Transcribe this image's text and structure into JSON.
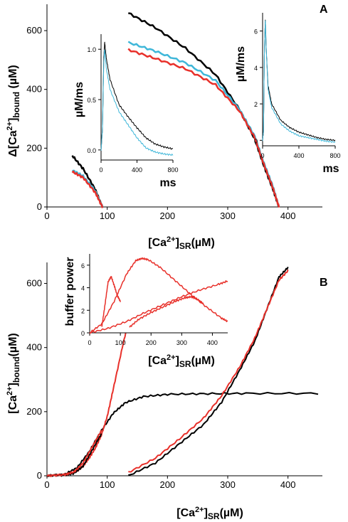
{
  "chart_data": [
    {
      "panel": "A",
      "type": "scatter",
      "xlabel": "[Ca2+]SR(µM)",
      "ylabel": "Δ[Ca2+]bound (µM)",
      "xlim": [
        0,
        450
      ],
      "ylim": [
        0,
        680
      ],
      "xticks": [
        "0",
        "100",
        "200",
        "300",
        "400"
      ],
      "yticks": [
        "0",
        "200",
        "400",
        "600"
      ],
      "colors": {
        "black": "#000000",
        "cyan": "#3fb7d9",
        "red": "#e8302a"
      },
      "series": [
        {
          "color": "black",
          "x": [
            42,
            60,
            80,
            92
          ],
          "y": [
            175,
            130,
            60,
            0
          ]
        },
        {
          "color": "cyan",
          "x": [
            42,
            60,
            80,
            92
          ],
          "y": [
            125,
            105,
            55,
            0
          ]
        },
        {
          "color": "red",
          "x": [
            42,
            60,
            80,
            92
          ],
          "y": [
            120,
            100,
            50,
            0
          ]
        },
        {
          "color": "black",
          "x": [
            135,
            180,
            230,
            280,
            320,
            345,
            360,
            375,
            385
          ],
          "y": [
            660,
            610,
            540,
            450,
            330,
            230,
            140,
            60,
            0
          ]
        },
        {
          "color": "cyan",
          "x": [
            135,
            180,
            230,
            280,
            320,
            345,
            360,
            375,
            385
          ],
          "y": [
            560,
            530,
            490,
            430,
            330,
            240,
            150,
            70,
            0
          ]
        },
        {
          "color": "red",
          "x": [
            135,
            180,
            230,
            280,
            320,
            345,
            360,
            375,
            385
          ],
          "y": [
            535,
            505,
            470,
            415,
            325,
            235,
            145,
            65,
            0
          ]
        }
      ],
      "insets": [
        {
          "ylabel": "µM/ms",
          "xlabel": "ms",
          "xlim": [
            0,
            800
          ],
          "ylim": [
            -0.1,
            1.15
          ],
          "xticks": [
            "0",
            "400",
            "800"
          ],
          "yticks": [
            "0.0",
            "0.5",
            "1.0"
          ],
          "series": [
            {
              "color": "black",
              "x": [
                0,
                15,
                30,
                40,
                60,
                100,
                200,
                300,
                400,
                500,
                600,
                700,
                800
              ],
              "y": [
                0,
                0.2,
                0.9,
                1.07,
                0.9,
                0.7,
                0.45,
                0.33,
                0.22,
                0.12,
                0.06,
                0.03,
                0.01
              ]
            },
            {
              "color": "cyan",
              "x": [
                0,
                15,
                30,
                40,
                60,
                100,
                200,
                300,
                400,
                500,
                600,
                700,
                800
              ],
              "y": [
                0,
                0.2,
                0.85,
                1.0,
                0.8,
                0.6,
                0.38,
                0.25,
                0.12,
                0.02,
                -0.02,
                -0.04,
                -0.05
              ]
            }
          ]
        },
        {
          "ylabel": "µM/ms",
          "xlabel": "ms",
          "xlim": [
            0,
            800
          ],
          "ylim": [
            -0.3,
            7
          ],
          "xticks": [
            "0",
            "400",
            "800"
          ],
          "yticks": [
            "0",
            "2",
            "4",
            "6"
          ],
          "series": [
            {
              "color": "black",
              "x": [
                0,
                10,
                20,
                30,
                40,
                60,
                100,
                200,
                300,
                400,
                500,
                600,
                700,
                800
              ],
              "y": [
                0,
                0.5,
                5.0,
                6.6,
                5.0,
                3.0,
                2.0,
                1.1,
                0.7,
                0.45,
                0.3,
                0.15,
                0.05,
                0.0
              ]
            },
            {
              "color": "cyan",
              "x": [
                0,
                10,
                20,
                30,
                40,
                60,
                100,
                200,
                300,
                400,
                500,
                600,
                700,
                800
              ],
              "y": [
                0,
                0.5,
                5.0,
                6.6,
                5.0,
                2.8,
                1.8,
                0.9,
                0.5,
                0.25,
                0.15,
                0.05,
                -0.05,
                -0.1
              ]
            }
          ]
        }
      ]
    },
    {
      "panel": "B",
      "type": "line",
      "xlabel": "[Ca2+]SR(µM)",
      "ylabel": "[Ca2+]bound(µM)",
      "xlim": [
        0,
        450
      ],
      "ylim": [
        0,
        650
      ],
      "xticks": [
        "0",
        "100",
        "200",
        "300",
        "400"
      ],
      "yticks": [
        "0",
        "200",
        "400",
        "600"
      ],
      "series": [
        {
          "color": "black",
          "x": [
            0,
            30,
            50,
            70,
            90,
            110,
            130,
            160,
            200,
            260,
            330,
            450
          ],
          "y": [
            0,
            5,
            25,
            75,
            140,
            195,
            228,
            247,
            254,
            256,
            257,
            257
          ]
        },
        {
          "color": "red",
          "x": [
            0,
            30,
            50,
            60,
            70,
            80,
            90,
            100,
            110,
            125,
            140,
            155,
            165
          ],
          "y": [
            0,
            4,
            15,
            30,
            55,
            85,
            125,
            185,
            270,
            400,
            520,
            620,
            650
          ]
        },
        {
          "color": "black",
          "x": [
            0,
            30,
            45,
            60,
            75,
            90
          ],
          "y": [
            0,
            2,
            8,
            30,
            80,
            130
          ]
        },
        {
          "color": "red",
          "x": [
            0,
            30,
            45,
            60,
            75,
            90
          ],
          "y": [
            0,
            3,
            12,
            40,
            90,
            140
          ]
        },
        {
          "color": "black",
          "x": [
            135,
            180,
            220,
            260,
            290,
            320,
            345,
            365,
            385,
            400
          ],
          "y": [
            0,
            40,
            100,
            160,
            230,
            330,
            420,
            520,
            620,
            650
          ]
        },
        {
          "color": "red",
          "x": [
            135,
            180,
            220,
            260,
            290,
            320,
            345,
            365,
            385,
            400
          ],
          "y": [
            10,
            55,
            115,
            180,
            250,
            340,
            430,
            520,
            610,
            640
          ]
        }
      ],
      "inset": {
        "ylabel": "buffer power",
        "xlabel": "[Ca2+]SR(µM)",
        "xlim": [
          0,
          450
        ],
        "ylim": [
          0,
          7
        ],
        "xticks": [
          "0",
          "100",
          "200",
          "300",
          "400"
        ],
        "yticks": [
          "0",
          "2",
          "4",
          "6"
        ],
        "series": [
          {
            "color": "red",
            "x": [
              0,
              40,
              80,
              120,
              150,
              170,
              190,
              230,
              280,
              330,
              380,
              430,
              450
            ],
            "y": [
              0,
              0.8,
              2.8,
              5.2,
              6.4,
              6.6,
              6.5,
              5.8,
              4.6,
              3.4,
              2.3,
              1.3,
              1.0
            ]
          },
          {
            "color": "red",
            "x": [
              0,
              60,
              120,
              180,
              240,
              300,
              360,
              420,
              450
            ],
            "y": [
              0,
              0.4,
              1.0,
              1.8,
              2.5,
              3.2,
              3.8,
              4.3,
              4.6
            ]
          },
          {
            "color": "red",
            "x": [
              40,
              50,
              60,
              70,
              80,
              90,
              100
            ],
            "y": [
              0.6,
              2.5,
              4.5,
              5.0,
              4.2,
              3.3,
              2.8
            ]
          },
          {
            "color": "red",
            "x": [
              130,
              160,
              200,
              240,
              280,
              310,
              330,
              350,
              370
            ],
            "y": [
              0.5,
              1.2,
              1.8,
              2.3,
              2.8,
              3.1,
              3.2,
              3.0,
              2.6
            ]
          }
        ]
      }
    }
  ]
}
